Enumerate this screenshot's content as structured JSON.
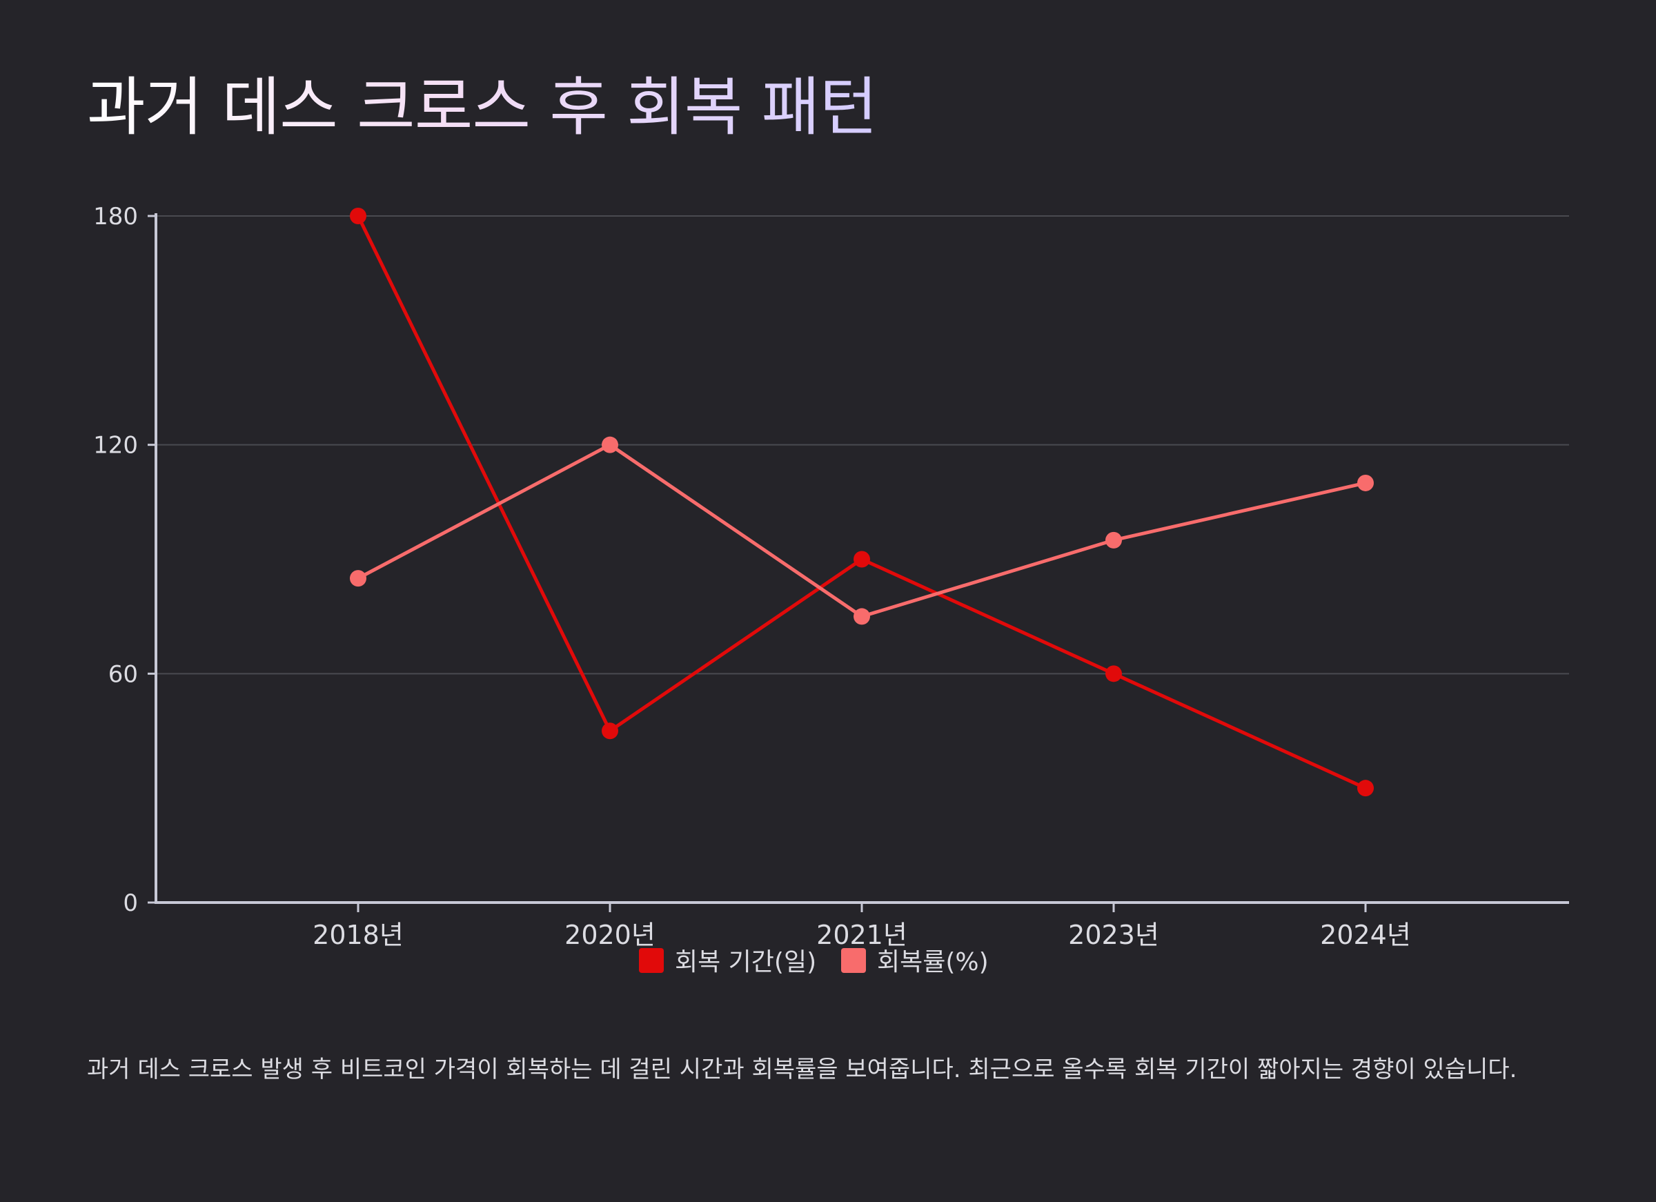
{
  "chart_data": {
    "type": "line",
    "title": "과거 데스 크로스 후 회복 패턴",
    "categories": [
      "2018년",
      "2020년",
      "2021년",
      "2023년",
      "2024년"
    ],
    "series": [
      {
        "name": "회복 기간(일)",
        "color": "#e10a0a",
        "values": [
          180,
          45,
          90,
          60,
          30
        ]
      },
      {
        "name": "회복률(%)",
        "color": "#f86c6c",
        "values": [
          85,
          120,
          75,
          95,
          110
        ]
      }
    ],
    "ylim": [
      0,
      180
    ],
    "yticks": [
      0,
      60,
      120,
      180
    ],
    "xlabel": "",
    "ylabel": "",
    "grid": true,
    "legend": "bottom-center"
  },
  "description": "과거 데스 크로스 발생 후 비트코인 가격이 회복하는 데 걸린 시간과 회복률을 보여줍니다. 최근으로 올수록 회복 기간이 짧아지는 경향이 있습니다.",
  "colors": {
    "background": "#252429",
    "axis": "#c8c9d6",
    "grid": "#4a4a50",
    "text": "#dcdce2"
  }
}
